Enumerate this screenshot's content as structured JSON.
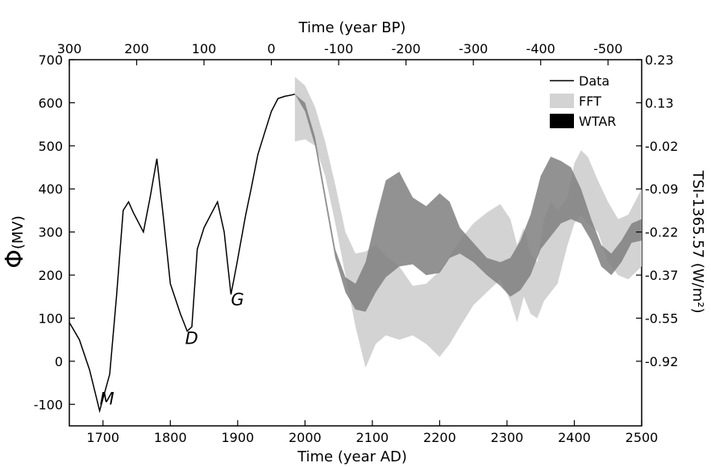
{
  "chart_data": {
    "type": "line",
    "xlabel_bottom": "Time (year AD)",
    "xlabel_top": "Time (year BP)",
    "ylabel_left_symbol": "Φ",
    "ylabel_left_unit": "(MV)",
    "ylabel_right": "TSI-1365.57 (W/m²)",
    "xlim": [
      1650,
      2500
    ],
    "ylim": [
      -150,
      700
    ],
    "x_ticks": [
      1700,
      1800,
      1900,
      2000,
      2100,
      2200,
      2300,
      2400,
      2500
    ],
    "x_tick_labels": [
      "1700",
      "1800",
      "1900",
      "2000",
      "2100",
      "2200",
      "2300",
      "2400",
      "2500"
    ],
    "y_ticks": [
      -100,
      0,
      100,
      200,
      300,
      400,
      500,
      600,
      700
    ],
    "y_tick_labels": [
      "-100",
      "0",
      "100",
      "200",
      "300",
      "400",
      "500",
      "600",
      "700"
    ],
    "top_ticks_year_ad": [
      1650,
      1750,
      1850,
      1950,
      2050,
      2150,
      2250,
      2350,
      2450
    ],
    "top_tick_labels": [
      "300",
      "200",
      "100",
      "0",
      "-100",
      "-200",
      "-300",
      "-400",
      "-500"
    ],
    "right_ticks_phi": [
      700,
      600,
      500,
      400,
      300,
      200,
      100,
      0
    ],
    "right_tick_labels": [
      "0.23",
      "0.13",
      "-0.02",
      "-0.09",
      "-0.22",
      "-0.37",
      "-0.55",
      "-0.92"
    ],
    "legend": {
      "placement": "top-right",
      "entries": [
        {
          "label": "Data",
          "style": "line",
          "color": "#000000"
        },
        {
          "label": "FFT",
          "style": "fill",
          "color": "#d3d3d3"
        },
        {
          "label": "WTAR",
          "style": "fill",
          "color": "#000000"
        }
      ]
    },
    "annotations": [
      {
        "text": "M",
        "x": 1695,
        "y": -100
      },
      {
        "text": "D",
        "x": 1822,
        "y": 40
      },
      {
        "text": "G",
        "x": 1890,
        "y": 130
      }
    ],
    "series": [
      {
        "name": "Data",
        "type": "line",
        "color": "#000000",
        "x": [
          1650,
          1665,
          1680,
          1695,
          1710,
          1720,
          1730,
          1738,
          1745,
          1760,
          1770,
          1780,
          1790,
          1800,
          1815,
          1825,
          1832,
          1840,
          1850,
          1860,
          1870,
          1880,
          1890,
          1898,
          1905,
          1912,
          1920,
          1930,
          1940,
          1950,
          1960,
          1970,
          1980,
          1985
        ],
        "y": [
          90,
          50,
          -20,
          -115,
          -30,
          150,
          350,
          370,
          345,
          300,
          380,
          470,
          330,
          180,
          110,
          70,
          80,
          260,
          310,
          340,
          370,
          300,
          155,
          220,
          280,
          340,
          400,
          480,
          530,
          580,
          610,
          615,
          618,
          620
        ]
      },
      {
        "name": "FFT",
        "type": "band",
        "color": "#d3d3d3",
        "x": [
          1985,
          2000,
          2015,
          2030,
          2045,
          2060,
          2075,
          2090,
          2105,
          2120,
          2140,
          2160,
          2180,
          2200,
          2215,
          2230,
          2250,
          2270,
          2290,
          2305,
          2315,
          2325,
          2335,
          2345,
          2355,
          2365,
          2375,
          2390,
          2400,
          2410,
          2420,
          2435,
          2450,
          2465,
          2480,
          2500
        ],
        "upper": [
          660,
          640,
          590,
          510,
          410,
          300,
          250,
          255,
          270,
          245,
          220,
          175,
          180,
          210,
          245,
          280,
          320,
          345,
          365,
          330,
          270,
          310,
          250,
          230,
          330,
          370,
          350,
          380,
          460,
          490,
          475,
          420,
          370,
          330,
          340,
          400
        ],
        "lower": [
          510,
          515,
          500,
          430,
          320,
          200,
          80,
          -15,
          40,
          60,
          50,
          60,
          40,
          10,
          40,
          80,
          130,
          160,
          190,
          140,
          90,
          150,
          110,
          100,
          140,
          160,
          180,
          270,
          320,
          340,
          320,
          300,
          230,
          200,
          190,
          220
        ]
      },
      {
        "name": "WTAR",
        "type": "band",
        "color": "#7f7f7f",
        "x": [
          1985,
          2000,
          2015,
          2030,
          2045,
          2060,
          2075,
          2090,
          2105,
          2120,
          2140,
          2160,
          2180,
          2200,
          2215,
          2230,
          2250,
          2270,
          2290,
          2305,
          2320,
          2335,
          2350,
          2365,
          2380,
          2395,
          2410,
          2425,
          2440,
          2455,
          2470,
          2485,
          2500
        ],
        "upper": [
          620,
          600,
          520,
          390,
          260,
          195,
          180,
          230,
          330,
          420,
          440,
          380,
          360,
          390,
          370,
          310,
          275,
          240,
          230,
          240,
          280,
          340,
          430,
          475,
          465,
          450,
          400,
          330,
          270,
          250,
          280,
          320,
          330
        ],
        "lower": [
          620,
          580,
          500,
          370,
          240,
          160,
          120,
          115,
          160,
          195,
          220,
          225,
          200,
          205,
          240,
          250,
          230,
          200,
          175,
          150,
          165,
          200,
          260,
          290,
          320,
          330,
          320,
          280,
          220,
          200,
          230,
          275,
          280
        ]
      }
    ]
  }
}
